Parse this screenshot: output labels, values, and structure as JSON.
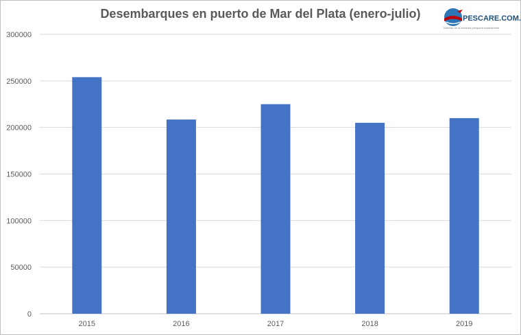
{
  "logo": {
    "brand": "PESCARE.COM.AR",
    "tagline": "Noticias de la industria pesquera marplatense"
  },
  "chart_data": {
    "type": "bar",
    "title": "Desembarques en puerto de Mar del Plata (enero-julio)",
    "xlabel": "",
    "ylabel": "",
    "categories": [
      "2015",
      "2016",
      "2017",
      "2018",
      "2019"
    ],
    "values": [
      254000,
      208500,
      225000,
      205000,
      210000
    ],
    "ylim": [
      0,
      300000
    ],
    "yticks": [
      0,
      50000,
      100000,
      150000,
      200000,
      250000,
      300000
    ],
    "ytick_labels": [
      "0",
      "50000",
      "100000",
      "150000",
      "200000",
      "250000",
      "300000"
    ],
    "grid": true,
    "legend": "none",
    "colors": {
      "bar": "#4472c4",
      "grid": "#d9d9d9",
      "text": "#595959"
    }
  }
}
